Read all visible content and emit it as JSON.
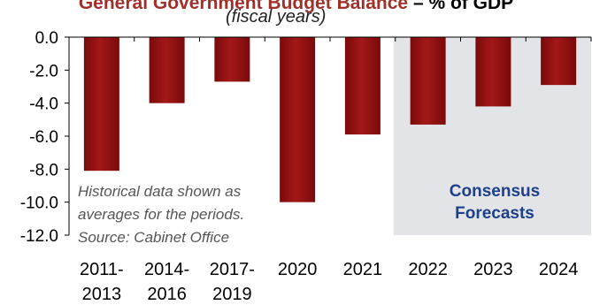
{
  "header": {
    "title_part1": "General Government Budget Balance",
    "title_part2": " – % of GDP",
    "subtitle": "(fiscal years)"
  },
  "annotations": {
    "note_lines": [
      "Historical data shown as",
      "averages for the periods.",
      "Source:  Cabinet Office"
    ],
    "forecast_lines": [
      "Consensus",
      "Forecasts"
    ]
  },
  "colors": {
    "bar": "#7a0a0a",
    "bar_highlight": "#a31818",
    "forecast_shade": "#e2e4e7",
    "title_red": "#a0302a",
    "forecast_text": "#1e3f8a"
  },
  "chart_data": {
    "type": "bar",
    "title": "General Government Budget Balance – % of GDP",
    "subtitle": "(fiscal years)",
    "categories": [
      [
        "2011-",
        "2013"
      ],
      [
        "2014-",
        "2016"
      ],
      [
        "2017-",
        "2019"
      ],
      [
        "2020"
      ],
      [
        "2021"
      ],
      [
        "2022"
      ],
      [
        "2023"
      ],
      [
        "2024"
      ]
    ],
    "values": [
      -8.1,
      -4.0,
      -2.7,
      -10.0,
      -5.9,
      -5.3,
      -4.2,
      -2.9
    ],
    "ylim": [
      -12.0,
      0.0
    ],
    "yticks": [
      "0.0",
      "-2.0",
      "-4.0",
      "-6.0",
      "-8.0",
      "-10.0",
      "-12.0"
    ],
    "ytick_values": [
      0,
      -2,
      -4,
      -6,
      -8,
      -10,
      -12
    ],
    "forecast_categories": [
      "2022",
      "2023",
      "2024"
    ],
    "grid": false
  }
}
